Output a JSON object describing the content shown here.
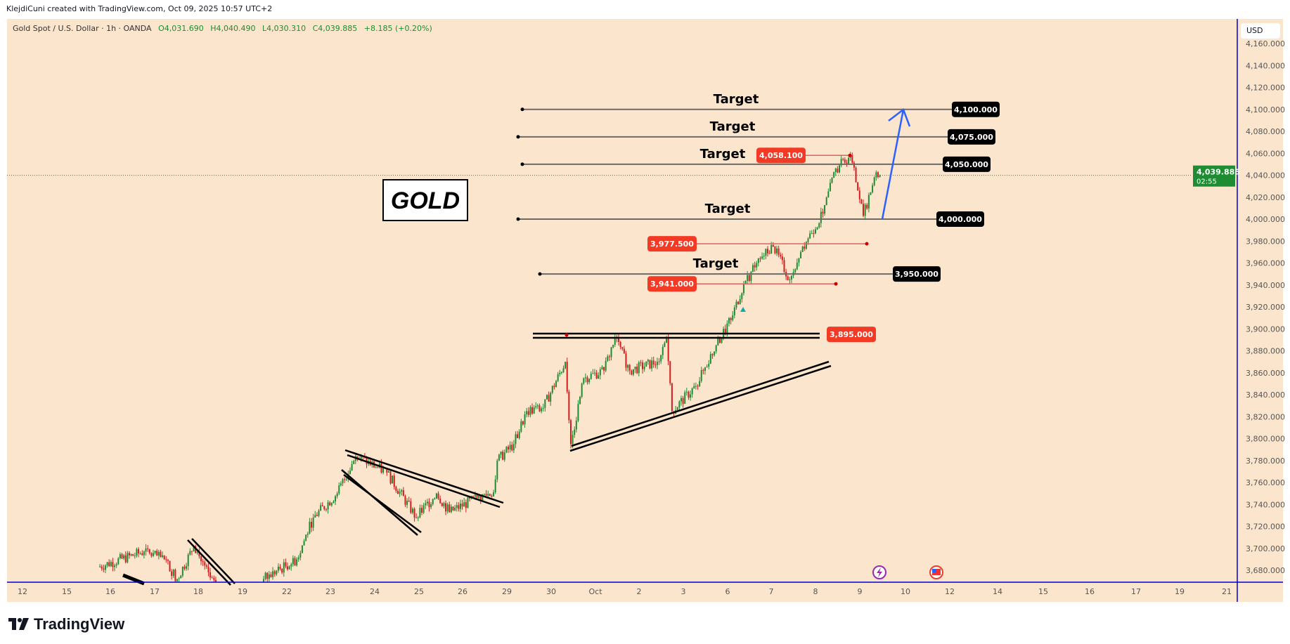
{
  "credit": "KlejdiCuni created with TradingView.com, Oct 09, 2025 10:57 UTC+2",
  "legend": {
    "symbol": "Gold Spot / U.S. Dollar · 1h · OANDA",
    "open": "O4,031.690",
    "high": "H4,040.490",
    "low": "L4,030.310",
    "close": "C4,039.885",
    "change": "+8.185 (+0.20%)"
  },
  "currency": "USD",
  "current_price": {
    "value": "4,039.885",
    "countdown": "02:55"
  },
  "brand": "TradingView",
  "colors": {
    "background": "#fce5cd",
    "up": "#1e8c32",
    "down": "#d31d1d",
    "accent_line": "#0000cc",
    "target_box": "#000000",
    "red_box": "#f23a25",
    "arrow": "#2962ff"
  },
  "chart_data": {
    "type": "candlestick",
    "title": "GOLD",
    "ylim": [
      3680,
      4160
    ],
    "y_ticks": [
      "3,680.000",
      "3,700.000",
      "3,720.000",
      "3,740.000",
      "3,760.000",
      "3,780.000",
      "3,800.000",
      "3,820.000",
      "3,840.000",
      "3,860.000",
      "3,880.000",
      "3,900.000",
      "3,920.000",
      "3,940.000",
      "3,960.000",
      "3,980.000",
      "4,000.000",
      "4,020.000",
      "4,040.000",
      "4,060.000",
      "4,080.000",
      "4,100.000",
      "4,120.000",
      "4,140.000",
      "4,160.000"
    ],
    "x_ticks": [
      "12",
      "15",
      "16",
      "17",
      "18",
      "19",
      "22",
      "23",
      "24",
      "25",
      "26",
      "29",
      "30",
      "Oct",
      "2",
      "3",
      "6",
      "7",
      "8",
      "9",
      "10",
      "12",
      "14",
      "15",
      "16",
      "17",
      "19",
      "21"
    ],
    "price_path": [
      [
        "2025-09-15T17:00",
        3683
      ],
      [
        "2025-09-16T18:00",
        3697
      ],
      [
        "2025-09-17T05:00",
        3690
      ],
      [
        "2025-09-17T12:00",
        3672
      ],
      [
        "2025-09-17T21:00",
        3702
      ],
      [
        "2025-09-18T10:00",
        3660
      ],
      [
        "2025-09-19T06:00",
        3640
      ],
      [
        "2025-09-19T11:00",
        3672
      ],
      [
        "2025-09-22T05:00",
        3690
      ],
      [
        "2025-09-22T14:00",
        3728
      ],
      [
        "2025-09-23T03:00",
        3750
      ],
      [
        "2025-09-23T13:00",
        3784
      ],
      [
        "2025-09-24T06:00",
        3769
      ],
      [
        "2025-09-24T22:00",
        3728
      ],
      [
        "2025-09-25T09:00",
        3750
      ],
      [
        "2025-09-25T16:00",
        3733
      ],
      [
        "2025-09-26T07:00",
        3746
      ],
      [
        "2025-09-26T16:00",
        3751
      ],
      [
        "2025-09-26T18:00",
        3780
      ],
      [
        "2025-09-29T03:00",
        3795
      ],
      [
        "2025-09-29T10:00",
        3825
      ],
      [
        "2025-09-29T19:00",
        3828
      ],
      [
        "2025-09-30T07:00",
        3870
      ],
      [
        "2025-09-30T10:00",
        3795
      ],
      [
        "2025-09-30T17:00",
        3855
      ],
      [
        "2025-10-01T04:00",
        3862
      ],
      [
        "2025-10-01T10:00",
        3892
      ],
      [
        "2025-10-01T18:00",
        3862
      ],
      [
        "2025-10-02T09:00",
        3870
      ],
      [
        "2025-10-02T14:00",
        3892
      ],
      [
        "2025-10-02T17:00",
        3825
      ],
      [
        "2025-10-03T06:00",
        3848
      ],
      [
        "2025-10-03T17:00",
        3885
      ],
      [
        "2025-10-06T01:00",
        3908
      ],
      [
        "2025-10-06T08:00",
        3941
      ],
      [
        "2025-10-06T17:00",
        3964
      ],
      [
        "2025-10-07T00:00",
        3975
      ],
      [
        "2025-10-07T09:00",
        3945
      ],
      [
        "2025-10-07T16:00",
        3975
      ],
      [
        "2025-10-08T03:00",
        4005
      ],
      [
        "2025-10-08T10:00",
        4046
      ],
      [
        "2025-10-08T18:00",
        4058
      ],
      [
        "2025-10-09T01:00",
        4003
      ],
      [
        "2025-10-09T07:00",
        4038
      ],
      [
        "2025-10-09T10:00",
        4039.885
      ]
    ],
    "targets": [
      {
        "label": "Target",
        "price": 4100,
        "price_label": "4,100.000"
      },
      {
        "label": "Target",
        "price": 4075,
        "price_label": "4,075.000"
      },
      {
        "label": "Target",
        "price": 4050,
        "price_label": "4,050.000"
      },
      {
        "label": "Target",
        "price": 4000,
        "price_label": "4,000.000"
      },
      {
        "label": "Target",
        "price": 3950,
        "price_label": "3,950.000"
      }
    ],
    "levels": [
      {
        "price": 4058.1,
        "price_label": "4,058.100"
      },
      {
        "price": 3977.5,
        "price_label": "3,977.500"
      },
      {
        "price": 3941,
        "price_label": "3,941.000"
      },
      {
        "price": 3895,
        "price_label": "3,895.000"
      }
    ]
  }
}
